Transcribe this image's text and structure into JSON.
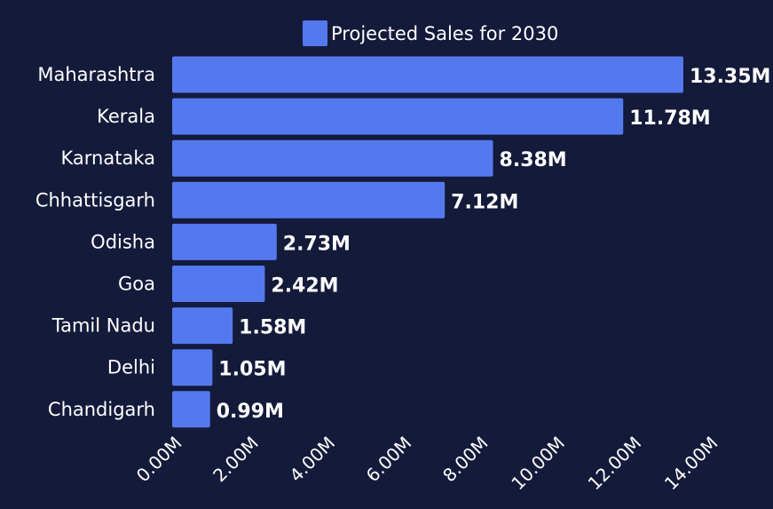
{
  "chart_data": {
    "type": "bar",
    "orientation": "horizontal",
    "categories": [
      "Maharashtra",
      "Kerala",
      "Karnataka",
      "Chhattisgarh",
      "Odisha",
      "Goa",
      "Tamil Nadu",
      "Delhi",
      "Chandigarh"
    ],
    "series": [
      {
        "name": "Projected Sales for 2030",
        "values": [
          13.35,
          11.78,
          8.38,
          7.12,
          2.73,
          2.42,
          1.58,
          1.05,
          0.99
        ],
        "data_labels": [
          "13.35M",
          "11.78M",
          "8.38M",
          "7.12M",
          "2.73M",
          "2.42M",
          "1.58M",
          "1.05M",
          "0.99M"
        ]
      }
    ],
    "x_ticks": [
      {
        "value": 0,
        "label": "0.00M"
      },
      {
        "value": 2,
        "label": "2.00M"
      },
      {
        "value": 4,
        "label": "4.00M"
      },
      {
        "value": 6,
        "label": "6.00M"
      },
      {
        "value": 8,
        "label": "8.00M"
      },
      {
        "value": 10,
        "label": "10.00M"
      },
      {
        "value": 12,
        "label": "12.00M"
      },
      {
        "value": 14,
        "label": "14.00M"
      }
    ],
    "xlim": [
      0,
      14
    ],
    "legend_position": "top",
    "grid": false,
    "colors": {
      "background": "#141a3a",
      "bar": "#5479ef",
      "text": "#ffffff"
    }
  }
}
